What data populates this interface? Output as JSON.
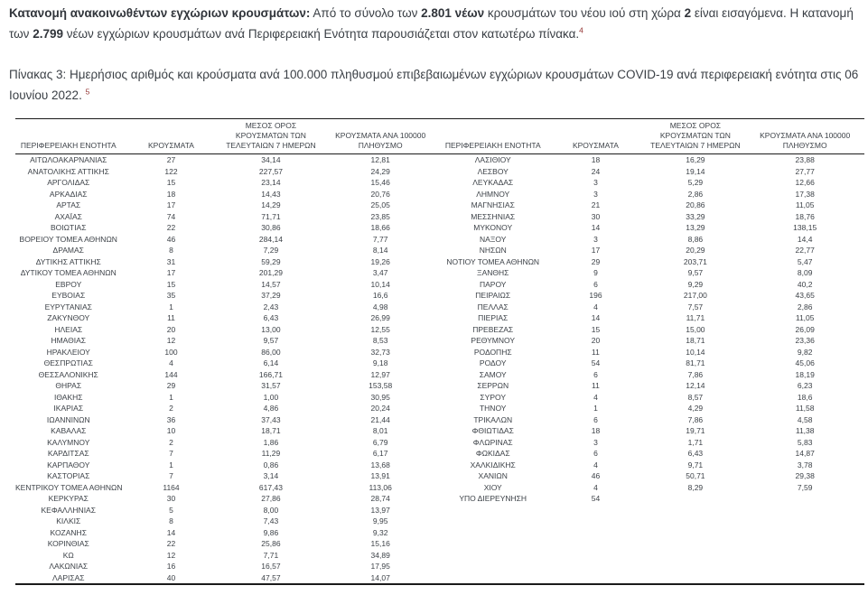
{
  "intro": {
    "bold_lead": "Κατανομή ανακοινωθέντων εγχώριων κρουσμάτων:",
    "text_1": " Από το σύνολο των ",
    "bold_1": "2.801 νέων",
    "text_2": " κρουσμάτων του νέου ιού στη χώρα ",
    "bold_2": "2",
    "text_3": " είναι εισαγόμενα. Η κατανομή των ",
    "bold_3": "2.799",
    "text_4": " νέων εγχώριων κρουσμάτων ανά Περιφερειακή Ενότητα παρουσιάζεται στον κατωτέρω πίνακα.",
    "footnote_ref": "4"
  },
  "caption": {
    "text": "Πίνακας 3: Ημερήσιος αριθμός και κρούσματα ανά 100.000 πληθυσμού επιβεβαιωμένων εγχώριων κρουσμάτων COVID-19 ανά περιφερειακή ενότητα στις 06 Ιουνίου 2022. ",
    "footnote_ref": "5"
  },
  "table": {
    "headers": {
      "region": "ΠΕΡΙΦΕΡΕΙΑΚΗ ΕΝΟΤΗΤΑ",
      "cases": "ΚΡΟΥΣΜΑΤΑ",
      "avg7": "ΜΕΣΟΣ ΟΡΟΣ\nΚΡΟΥΣΜΑΤΩΝ ΤΩΝ\nΤΕΛΕΥΤΑΙΩΝ 7 ΗΜΕΡΩΝ",
      "per100k": "ΚΡΟΥΣΜΑΤΑ ΑΝΑ 100000\nΠΛΗΘΥΣΜΟ"
    },
    "rows": [
      {
        "l": [
          "ΑΙΤΩΛΟΑΚΑΡΝΑΝΙΑΣ",
          "27",
          "34,14",
          "12,81"
        ],
        "r": [
          "ΛΑΣΙΘΙΟΥ",
          "18",
          "16,29",
          "23,88"
        ]
      },
      {
        "l": [
          "ΑΝΑΤΟΛΙΚΗΣ ΑΤΤΙΚΗΣ",
          "122",
          "227,57",
          "24,29"
        ],
        "r": [
          "ΛΕΣΒΟΥ",
          "24",
          "19,14",
          "27,77"
        ]
      },
      {
        "l": [
          "ΑΡΓΟΛΙΔΑΣ",
          "15",
          "23,14",
          "15,46"
        ],
        "r": [
          "ΛΕΥΚΑΔΑΣ",
          "3",
          "5,29",
          "12,66"
        ]
      },
      {
        "l": [
          "ΑΡΚΑΔΙΑΣ",
          "18",
          "14,43",
          "20,76"
        ],
        "r": [
          "ΛΗΜΝΟΥ",
          "3",
          "2,86",
          "17,38"
        ]
      },
      {
        "l": [
          "ΑΡΤΑΣ",
          "17",
          "14,29",
          "25,05"
        ],
        "r": [
          "ΜΑΓΝΗΣΙΑΣ",
          "21",
          "20,86",
          "11,05"
        ]
      },
      {
        "l": [
          "ΑΧΑΪΑΣ",
          "74",
          "71,71",
          "23,85"
        ],
        "r": [
          "ΜΕΣΣΗΝΙΑΣ",
          "30",
          "33,29",
          "18,76"
        ]
      },
      {
        "l": [
          "ΒΟΙΩΤΙΑΣ",
          "22",
          "30,86",
          "18,66"
        ],
        "r": [
          "ΜΥΚΟΝΟΥ",
          "14",
          "13,29",
          "138,15"
        ]
      },
      {
        "l": [
          "ΒΟΡΕΙΟΥ ΤΟΜΕΑ ΑΘΗΝΩΝ",
          "46",
          "284,14",
          "7,77"
        ],
        "r": [
          "ΝΑΞΟΥ",
          "3",
          "8,86",
          "14,4"
        ]
      },
      {
        "l": [
          "ΔΡΑΜΑΣ",
          "8",
          "7,29",
          "8,14"
        ],
        "r": [
          "ΝΗΣΩΝ",
          "17",
          "20,29",
          "22,77"
        ]
      },
      {
        "l": [
          "ΔΥΤΙΚΗΣ ΑΤΤΙΚΗΣ",
          "31",
          "59,29",
          "19,26"
        ],
        "r": [
          "ΝΟΤΙΟΥ ΤΟΜΕΑ ΑΘΗΝΩΝ",
          "29",
          "203,71",
          "5,47"
        ]
      },
      {
        "l": [
          "ΔΥΤΙΚΟΥ ΤΟΜΕΑ ΑΘΗΝΩΝ",
          "17",
          "201,29",
          "3,47"
        ],
        "r": [
          "ΞΑΝΘΗΣ",
          "9",
          "9,57",
          "8,09"
        ]
      },
      {
        "l": [
          "ΕΒΡΟΥ",
          "15",
          "14,57",
          "10,14"
        ],
        "r": [
          "ΠΑΡΟΥ",
          "6",
          "9,29",
          "40,2"
        ]
      },
      {
        "l": [
          "ΕΥΒΟΙΑΣ",
          "35",
          "37,29",
          "16,6"
        ],
        "r": [
          "ΠΕΙΡΑΙΩΣ",
          "196",
          "217,00",
          "43,65"
        ]
      },
      {
        "l": [
          "ΕΥΡΥΤΑΝΙΑΣ",
          "1",
          "2,43",
          "4,98"
        ],
        "r": [
          "ΠΕΛΛΑΣ",
          "4",
          "7,57",
          "2,86"
        ]
      },
      {
        "l": [
          "ΖΑΚΥΝΘΟΥ",
          "11",
          "6,43",
          "26,99"
        ],
        "r": [
          "ΠΙΕΡΙΑΣ",
          "14",
          "11,71",
          "11,05"
        ]
      },
      {
        "l": [
          "ΗΛΕΙΑΣ",
          "20",
          "13,00",
          "12,55"
        ],
        "r": [
          "ΠΡΕΒΕΖΑΣ",
          "15",
          "15,00",
          "26,09"
        ]
      },
      {
        "l": [
          "ΗΜΑΘΙΑΣ",
          "12",
          "9,57",
          "8,53"
        ],
        "r": [
          "ΡΕΘΥΜΝΟΥ",
          "20",
          "18,71",
          "23,36"
        ]
      },
      {
        "l": [
          "ΗΡΑΚΛΕΙΟΥ",
          "100",
          "86,00",
          "32,73"
        ],
        "r": [
          "ΡΟΔΟΠΗΣ",
          "11",
          "10,14",
          "9,82"
        ]
      },
      {
        "l": [
          "ΘΕΣΠΡΩΤΙΑΣ",
          "4",
          "6,14",
          "9,18"
        ],
        "r": [
          "ΡΟΔΟΥ",
          "54",
          "81,71",
          "45,06"
        ]
      },
      {
        "l": [
          "ΘΕΣΣΑΛΟΝΙΚΗΣ",
          "144",
          "166,71",
          "12,97"
        ],
        "r": [
          "ΣΑΜΟΥ",
          "6",
          "7,86",
          "18,19"
        ]
      },
      {
        "l": [
          "ΘΗΡΑΣ",
          "29",
          "31,57",
          "153,58"
        ],
        "r": [
          "ΣΕΡΡΩΝ",
          "11",
          "12,14",
          "6,23"
        ]
      },
      {
        "l": [
          "ΙΘΑΚΗΣ",
          "1",
          "1,00",
          "30,95"
        ],
        "r": [
          "ΣΥΡΟΥ",
          "4",
          "8,57",
          "18,6"
        ]
      },
      {
        "l": [
          "ΙΚΑΡΙΑΣ",
          "2",
          "4,86",
          "20,24"
        ],
        "r": [
          "ΤΗΝΟΥ",
          "1",
          "4,29",
          "11,58"
        ]
      },
      {
        "l": [
          "ΙΩΑΝΝΙΝΩΝ",
          "36",
          "37,43",
          "21,44"
        ],
        "r": [
          "ΤΡΙΚΑΛΩΝ",
          "6",
          "7,86",
          "4,58"
        ]
      },
      {
        "l": [
          "ΚΑΒΑΛΑΣ",
          "10",
          "18,71",
          "8,01"
        ],
        "r": [
          "ΦΘΙΩΤΙΔΑΣ",
          "18",
          "19,71",
          "11,38"
        ]
      },
      {
        "l": [
          "ΚΑΛΥΜΝΟΥ",
          "2",
          "1,86",
          "6,79"
        ],
        "r": [
          "ΦΛΩΡΙΝΑΣ",
          "3",
          "1,71",
          "5,83"
        ]
      },
      {
        "l": [
          "ΚΑΡΔΙΤΣΑΣ",
          "7",
          "11,29",
          "6,17"
        ],
        "r": [
          "ΦΩΚΙΔΑΣ",
          "6",
          "6,43",
          "14,87"
        ]
      },
      {
        "l": [
          "ΚΑΡΠΑΘΟΥ",
          "1",
          "0,86",
          "13,68"
        ],
        "r": [
          "ΧΑΛΚΙΔΙΚΗΣ",
          "4",
          "9,71",
          "3,78"
        ]
      },
      {
        "l": [
          "ΚΑΣΤΟΡΙΑΣ",
          "7",
          "3,14",
          "13,91"
        ],
        "r": [
          "ΧΑΝΙΩΝ",
          "46",
          "50,71",
          "29,38"
        ]
      },
      {
        "l": [
          "ΚΕΝΤΡΙΚΟΥ ΤΟΜΕΑ ΑΘΗΝΩΝ",
          "1164",
          "617,43",
          "113,06"
        ],
        "r": [
          "ΧΙΟΥ",
          "4",
          "8,29",
          "7,59"
        ]
      },
      {
        "l": [
          "ΚΕΡΚΥΡΑΣ",
          "30",
          "27,86",
          "28,74"
        ],
        "r": [
          "ΥΠΟ ΔΙΕΡΕΥΝΗΣΗ",
          "54",
          "",
          ""
        ]
      },
      {
        "l": [
          "ΚΕΦΑΛΛΗΝΙΑΣ",
          "5",
          "8,00",
          "13,97"
        ],
        "r": [
          "",
          "",
          "",
          ""
        ]
      },
      {
        "l": [
          "ΚΙΛΚΙΣ",
          "8",
          "7,43",
          "9,95"
        ],
        "r": [
          "",
          "",
          "",
          ""
        ]
      },
      {
        "l": [
          "ΚΟΖΑΝΗΣ",
          "14",
          "9,86",
          "9,32"
        ],
        "r": [
          "",
          "",
          "",
          ""
        ]
      },
      {
        "l": [
          "ΚΟΡΙΝΘΙΑΣ",
          "22",
          "25,86",
          "15,16"
        ],
        "r": [
          "",
          "",
          "",
          ""
        ]
      },
      {
        "l": [
          "ΚΩ",
          "12",
          "7,71",
          "34,89"
        ],
        "r": [
          "",
          "",
          "",
          ""
        ]
      },
      {
        "l": [
          "ΛΑΚΩΝΙΑΣ",
          "16",
          "16,57",
          "17,95"
        ],
        "r": [
          "",
          "",
          "",
          ""
        ]
      },
      {
        "l": [
          "ΛΑΡΙΣΑΣ",
          "40",
          "47,57",
          "14,07"
        ],
        "r": [
          "",
          "",
          "",
          ""
        ]
      }
    ],
    "colors": {
      "text": "#3d4248",
      "border": "#1a1a1a",
      "footnote": "#943634"
    }
  }
}
